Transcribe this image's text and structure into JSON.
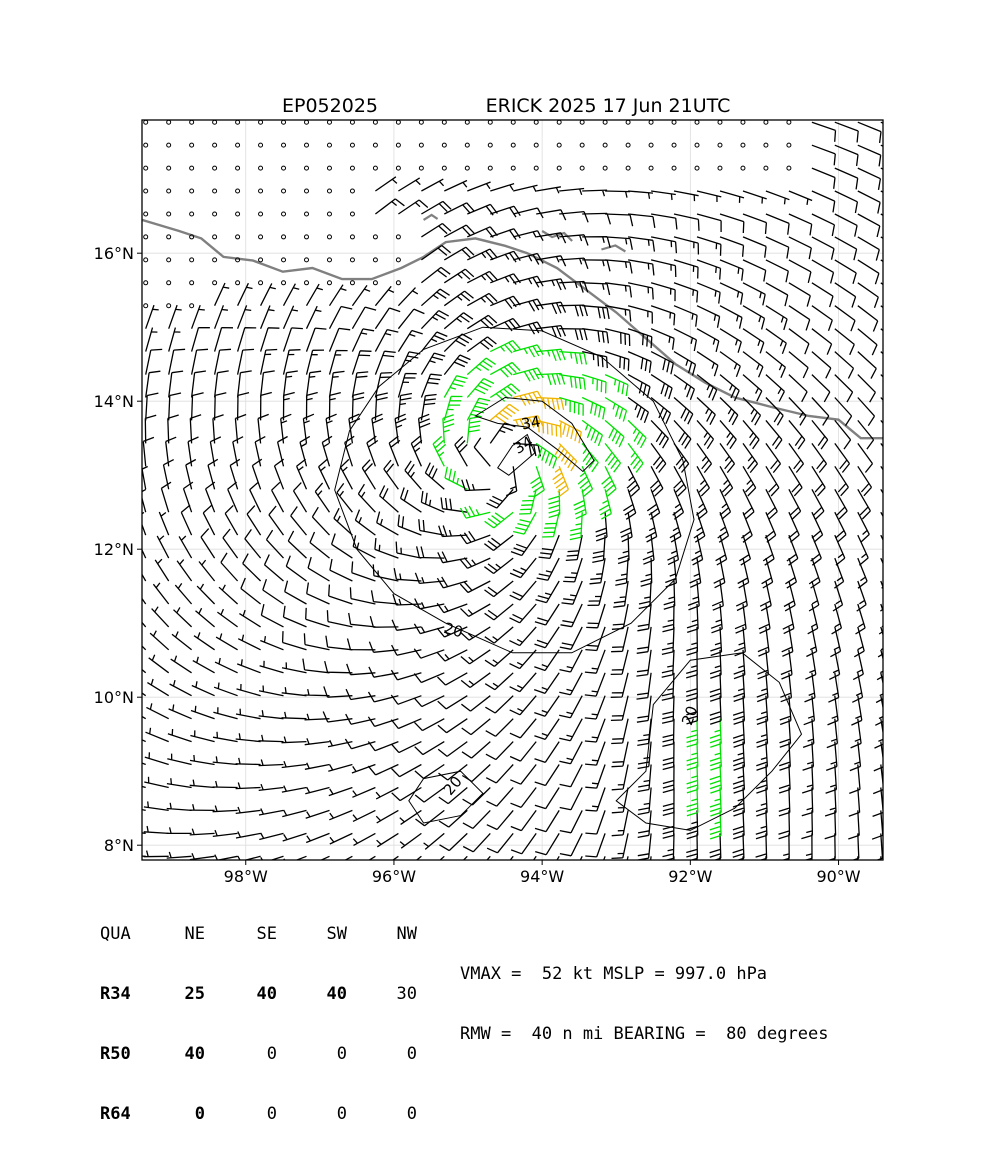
{
  "title": {
    "storm_id": "EP052025",
    "storm_label": "ERICK 2025 17 Jun 21UTC"
  },
  "map": {
    "lon_range": [
      -99.4,
      -89.4
    ],
    "lat_range": [
      7.8,
      17.8
    ],
    "lon_ticks": [
      {
        "value": -98,
        "label": "98°W"
      },
      {
        "value": -96,
        "label": "96°W"
      },
      {
        "value": -94,
        "label": "94°W"
      },
      {
        "value": -92,
        "label": "92°W"
      },
      {
        "value": -90,
        "label": "90°W"
      }
    ],
    "lat_ticks": [
      {
        "value": 8,
        "label": "8°N"
      },
      {
        "value": 10,
        "label": "10°N"
      },
      {
        "value": 12,
        "label": "12°N"
      },
      {
        "value": 14,
        "label": "14°N"
      },
      {
        "value": 16,
        "label": "16°N"
      }
    ],
    "grid": true,
    "storm_center": {
      "lon": -94.5,
      "lat": 13.2
    },
    "contour_labels": [
      {
        "text": "34",
        "lon": -94.15,
        "lat": 13.7,
        "rot": -10
      },
      {
        "text": "34",
        "lon": -94.25,
        "lat": 13.4,
        "rot": -30
      },
      {
        "text": "20",
        "lon": -95.2,
        "lat": 10.9,
        "rot": 15
      },
      {
        "text": "20",
        "lon": -92.0,
        "lat": 9.75,
        "rot": -70
      },
      {
        "text": "20",
        "lon": -95.2,
        "lat": 8.8,
        "rot": -50
      }
    ],
    "colors": {
      "barb_default": "#000000",
      "barb_34kt": "#00e000",
      "barb_50kt": "#f0b400",
      "coastline": "#808080",
      "contour": "#000000",
      "grid": "#dddddd"
    }
  },
  "table": {
    "header": {
      "label": "QUA",
      "cols": [
        "NE",
        "SE",
        "SW",
        "NW"
      ]
    },
    "rows": [
      {
        "label": "R34",
        "values": [
          "25",
          "40",
          "40",
          "30"
        ]
      },
      {
        "label": "R50",
        "values": [
          "40",
          "0",
          "0",
          "0"
        ]
      },
      {
        "label": "R64",
        "values": [
          "0",
          "0",
          "0",
          "0"
        ]
      }
    ]
  },
  "info": {
    "line1": "VMAX =  52 kt MSLP = 997.0 hPa",
    "line2": "RMW =  40 n mi BEARING =  80 degrees"
  }
}
